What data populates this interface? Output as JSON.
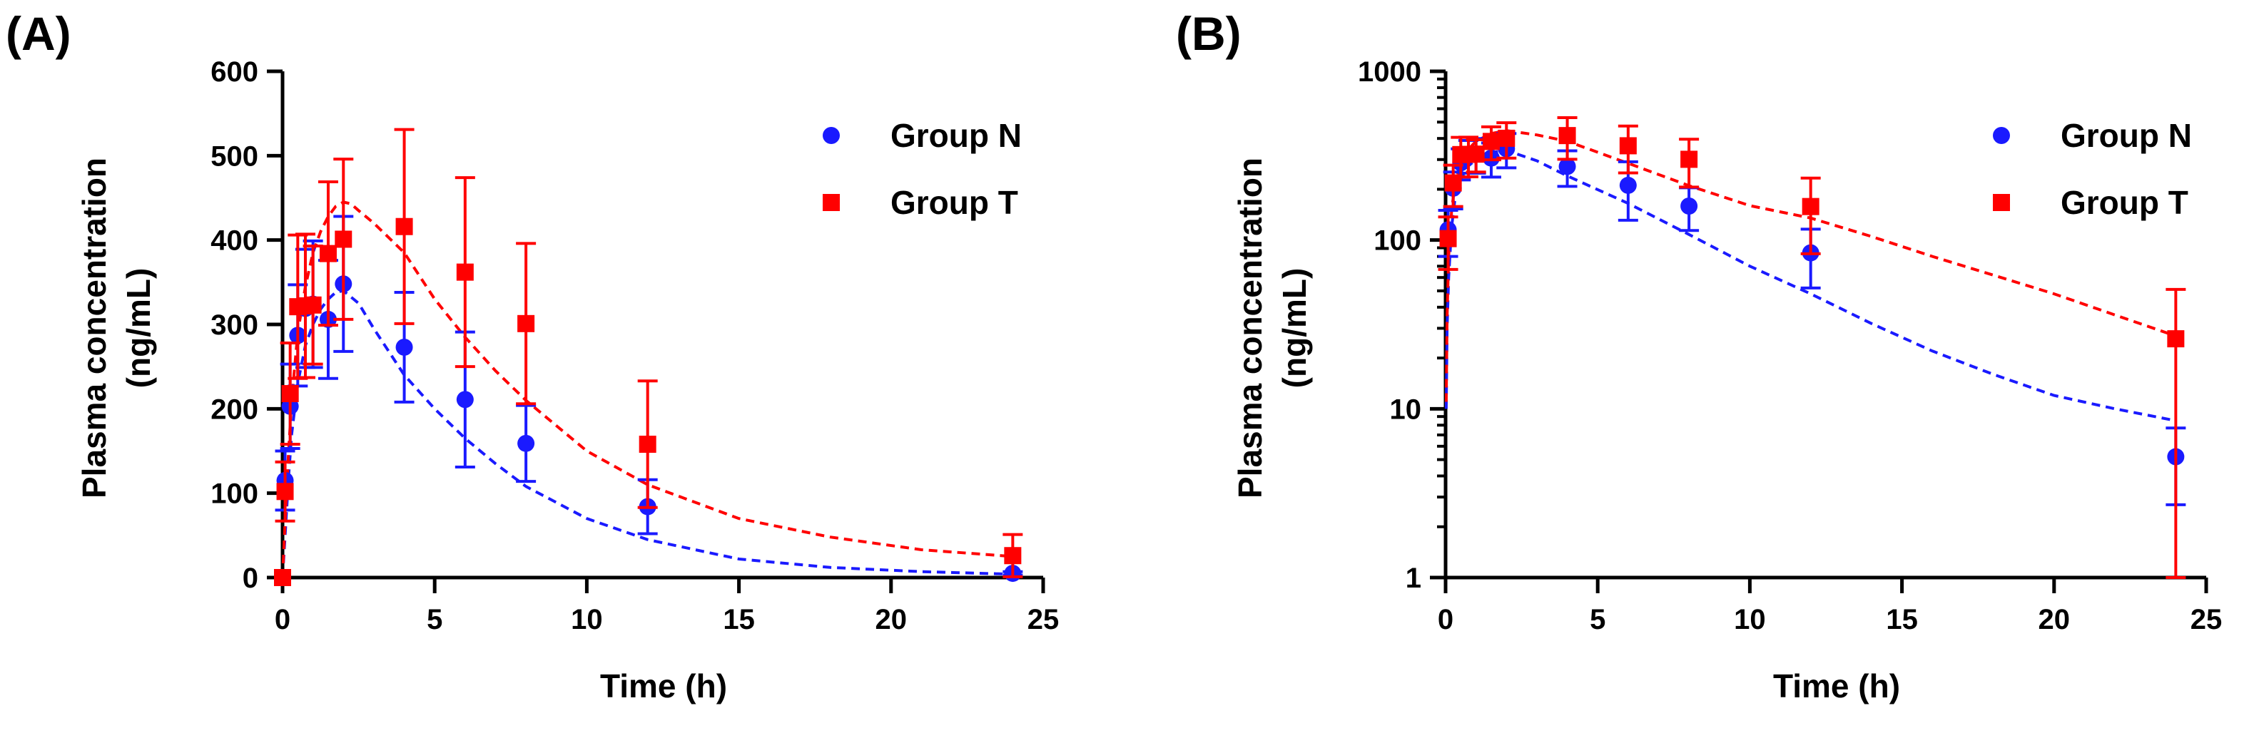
{
  "chart_data": [
    {
      "type": "scatter",
      "panel_label": "(A)",
      "scale": "linear",
      "xlabel": "Time (h)",
      "ylabel_lines": [
        "Plasma concentration",
        "(ng/mL)"
      ],
      "xlim": [
        0,
        25
      ],
      "ylim": [
        0,
        600
      ],
      "xticks": [
        0,
        5,
        10,
        15,
        20,
        25
      ],
      "yticks": [
        0,
        100,
        200,
        300,
        400,
        500,
        600
      ],
      "legend_position": "top-right",
      "series": [
        {
          "name": "Group N",
          "marker": "circle",
          "color": "#1a1aff",
          "x": [
            0,
            0.083,
            0.25,
            0.5,
            0.75,
            1,
            1.5,
            2,
            4,
            6,
            8,
            12,
            24
          ],
          "y": [
            0,
            115,
            203,
            287,
            319,
            324,
            306,
            348,
            273,
            211,
            159,
            84,
            5
          ],
          "err": [
            0,
            35,
            50,
            60,
            70,
            75,
            70,
            80,
            65,
            80,
            45,
            32,
            2
          ],
          "fit_x": [
            0,
            0.1,
            0.2,
            0.3,
            0.5,
            0.75,
            1,
            1.25,
            1.5,
            1.75,
            2,
            2.5,
            3,
            4,
            5,
            6,
            7,
            8,
            10,
            12,
            15,
            18,
            21,
            24
          ],
          "fit_y": [
            0,
            60,
            120,
            170,
            230,
            275,
            300,
            318,
            330,
            338,
            340,
            325,
            295,
            240,
            200,
            165,
            135,
            108,
            70,
            45,
            22,
            12,
            7,
            4
          ]
        },
        {
          "name": "Group T",
          "marker": "square",
          "color": "#ff0000",
          "x": [
            0,
            0.083,
            0.25,
            0.5,
            0.75,
            1,
            1.5,
            2,
            4,
            6,
            8,
            12,
            24
          ],
          "y": [
            0,
            102,
            218,
            321,
            322,
            323,
            384,
            401,
            416,
            362,
            301,
            158,
            26
          ],
          "err": [
            0,
            35,
            60,
            85,
            85,
            70,
            85,
            95,
            115,
            112,
            95,
            75,
            25
          ],
          "fit_x": [
            0,
            0.1,
            0.2,
            0.3,
            0.5,
            0.75,
            1,
            1.25,
            1.5,
            1.75,
            2,
            2.25,
            2.5,
            3,
            4,
            5,
            6,
            7,
            8,
            10,
            12,
            15,
            18,
            21,
            24
          ],
          "fit_y": [
            0,
            80,
            150,
            210,
            290,
            345,
            385,
            410,
            428,
            440,
            445,
            443,
            435,
            420,
            385,
            330,
            285,
            245,
            210,
            150,
            110,
            70,
            48,
            33,
            25
          ]
        }
      ]
    },
    {
      "type": "scatter",
      "panel_label": "(B)",
      "scale": "log",
      "xlabel": "Time (h)",
      "ylabel_lines": [
        "Plasma concentration",
        "(ng/mL)"
      ],
      "xlim": [
        0,
        25
      ],
      "ylim": [
        1,
        1000
      ],
      "xticks": [
        0,
        5,
        10,
        15,
        20,
        25
      ],
      "yticks": [
        1,
        10,
        100,
        1000
      ],
      "legend_position": "top-right",
      "series": [
        {
          "name": "Group N",
          "marker": "circle",
          "color": "#1a1aff",
          "x": [
            0.083,
            0.25,
            0.5,
            0.75,
            1,
            1.5,
            2,
            4,
            6,
            8,
            12,
            24
          ],
          "y": [
            115,
            203,
            287,
            319,
            324,
            306,
            348,
            273,
            211,
            159,
            84,
            5.2
          ],
          "err": [
            35,
            50,
            60,
            70,
            75,
            70,
            80,
            65,
            80,
            45,
            32,
            2.5
          ],
          "fit_x": [
            0.02,
            0.05,
            0.1,
            0.2,
            0.3,
            0.5,
            0.75,
            1,
            1.5,
            2,
            3,
            4,
            6,
            8,
            10,
            12,
            14,
            16,
            18,
            20,
            22,
            24
          ],
          "fit_y": [
            10,
            30,
            60,
            120,
            170,
            230,
            275,
            300,
            330,
            340,
            295,
            240,
            165,
            108,
            70,
            48,
            32,
            22,
            16,
            12,
            10,
            8.5
          ]
        },
        {
          "name": "Group T",
          "marker": "square",
          "color": "#ff0000",
          "x": [
            0.083,
            0.25,
            0.5,
            0.75,
            1,
            1.5,
            2,
            4,
            6,
            8,
            12,
            24
          ],
          "y": [
            102,
            218,
            321,
            322,
            323,
            384,
            401,
            416,
            362,
            301,
            158,
            26
          ],
          "err": [
            35,
            60,
            85,
            85,
            70,
            85,
            95,
            115,
            112,
            95,
            75,
            25
          ],
          "fit_x": [
            0.02,
            0.05,
            0.1,
            0.2,
            0.3,
            0.5,
            0.75,
            1,
            1.5,
            2,
            3,
            4,
            6,
            8,
            10,
            12,
            14,
            16,
            18,
            20,
            22,
            24
          ],
          "fit_y": [
            11,
            35,
            80,
            150,
            210,
            290,
            345,
            385,
            428,
            445,
            420,
            385,
            285,
            210,
            160,
            135,
            105,
            80,
            62,
            48,
            36,
            27
          ]
        }
      ]
    }
  ]
}
